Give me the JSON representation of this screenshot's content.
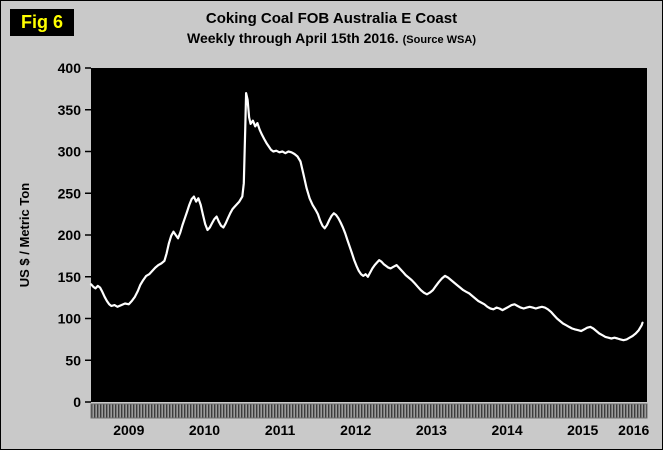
{
  "figure_label": "Fig 6",
  "title": {
    "line1": "Coking Coal FOB Australia E Coast",
    "line2_main": "Weekly through April 15th 2016.",
    "line2_source": "(Source WSA)"
  },
  "colors": {
    "page_bg": "#c9c9c9",
    "plot_bg": "#000000",
    "line": "#ffffff",
    "fig_label_bg": "#000000",
    "fig_label_fg": "#ffff00",
    "band_bg": "#9c9c9c",
    "band_rib": "#3c3c3c",
    "text": "#000000"
  },
  "chart_data": {
    "type": "line",
    "title": "Coking Coal FOB Australia E Coast — Weekly through April 15th 2016 (Source WSA)",
    "xlabel": "",
    "ylabel": "US $ / Metric Ton",
    "ylim": [
      0,
      400
    ],
    "ytick_step": 50,
    "yticks": [
      400,
      350,
      300,
      250,
      200,
      150,
      100,
      50,
      0
    ],
    "x_year_labels": [
      "2009",
      "2010",
      "2011",
      "2012",
      "2013",
      "2014",
      "2015",
      "2016"
    ],
    "xlim": [
      2009.0,
      2016.35
    ],
    "grid": false,
    "legend": "none",
    "series": [
      {
        "name": "Coking Coal FOB Australia E Coast (US$ / metric ton)",
        "points": [
          [
            2009.0,
            141
          ],
          [
            2009.03,
            138
          ],
          [
            2009.06,
            136
          ],
          [
            2009.09,
            139
          ],
          [
            2009.12,
            137
          ],
          [
            2009.15,
            132
          ],
          [
            2009.18,
            126
          ],
          [
            2009.21,
            121
          ],
          [
            2009.24,
            117
          ],
          [
            2009.27,
            115
          ],
          [
            2009.31,
            116
          ],
          [
            2009.35,
            114
          ],
          [
            2009.4,
            116
          ],
          [
            2009.45,
            118
          ],
          [
            2009.5,
            117
          ],
          [
            2009.54,
            121
          ],
          [
            2009.58,
            126
          ],
          [
            2009.62,
            133
          ],
          [
            2009.65,
            140
          ],
          [
            2009.69,
            146
          ],
          [
            2009.73,
            151
          ],
          [
            2009.77,
            153
          ],
          [
            2009.81,
            157
          ],
          [
            2009.85,
            161
          ],
          [
            2009.89,
            164
          ],
          [
            2009.93,
            166
          ],
          [
            2009.97,
            169
          ],
          [
            2010.0,
            178
          ],
          [
            2010.03,
            190
          ],
          [
            2010.06,
            199
          ],
          [
            2010.09,
            204
          ],
          [
            2010.12,
            200
          ],
          [
            2010.15,
            196
          ],
          [
            2010.18,
            203
          ],
          [
            2010.21,
            212
          ],
          [
            2010.24,
            220
          ],
          [
            2010.27,
            228
          ],
          [
            2010.3,
            236
          ],
          [
            2010.33,
            243
          ],
          [
            2010.36,
            246
          ],
          [
            2010.39,
            240
          ],
          [
            2010.42,
            244
          ],
          [
            2010.45,
            236
          ],
          [
            2010.48,
            224
          ],
          [
            2010.51,
            213
          ],
          [
            2010.54,
            206
          ],
          [
            2010.57,
            209
          ],
          [
            2010.6,
            214
          ],
          [
            2010.63,
            219
          ],
          [
            2010.66,
            222
          ],
          [
            2010.69,
            216
          ],
          [
            2010.72,
            211
          ],
          [
            2010.75,
            209
          ],
          [
            2010.78,
            214
          ],
          [
            2010.81,
            220
          ],
          [
            2010.84,
            226
          ],
          [
            2010.87,
            231
          ],
          [
            2010.9,
            234
          ],
          [
            2010.93,
            237
          ],
          [
            2010.96,
            240
          ],
          [
            2011.0,
            246
          ],
          [
            2011.02,
            262
          ],
          [
            2011.04,
            330
          ],
          [
            2011.05,
            370
          ],
          [
            2011.07,
            362
          ],
          [
            2011.09,
            341
          ],
          [
            2011.11,
            333
          ],
          [
            2011.14,
            337
          ],
          [
            2011.17,
            330
          ],
          [
            2011.2,
            334
          ],
          [
            2011.23,
            326
          ],
          [
            2011.26,
            320
          ],
          [
            2011.29,
            315
          ],
          [
            2011.32,
            310
          ],
          [
            2011.35,
            306
          ],
          [
            2011.38,
            302
          ],
          [
            2011.41,
            300
          ],
          [
            2011.45,
            301
          ],
          [
            2011.49,
            299
          ],
          [
            2011.53,
            300
          ],
          [
            2011.57,
            298
          ],
          [
            2011.61,
            300
          ],
          [
            2011.65,
            299
          ],
          [
            2011.69,
            297
          ],
          [
            2011.73,
            294
          ],
          [
            2011.77,
            288
          ],
          [
            2011.81,
            272
          ],
          [
            2011.85,
            256
          ],
          [
            2011.89,
            244
          ],
          [
            2011.93,
            236
          ],
          [
            2011.97,
            230
          ],
          [
            2012.0,
            225
          ],
          [
            2012.03,
            217
          ],
          [
            2012.06,
            211
          ],
          [
            2012.09,
            208
          ],
          [
            2012.12,
            212
          ],
          [
            2012.15,
            218
          ],
          [
            2012.18,
            223
          ],
          [
            2012.21,
            226
          ],
          [
            2012.24,
            224
          ],
          [
            2012.27,
            220
          ],
          [
            2012.3,
            215
          ],
          [
            2012.33,
            209
          ],
          [
            2012.36,
            202
          ],
          [
            2012.39,
            194
          ],
          [
            2012.42,
            186
          ],
          [
            2012.45,
            178
          ],
          [
            2012.48,
            170
          ],
          [
            2012.51,
            163
          ],
          [
            2012.54,
            157
          ],
          [
            2012.57,
            153
          ],
          [
            2012.6,
            151
          ],
          [
            2012.63,
            153
          ],
          [
            2012.66,
            150
          ],
          [
            2012.69,
            155
          ],
          [
            2012.72,
            160
          ],
          [
            2012.75,
            164
          ],
          [
            2012.78,
            167
          ],
          [
            2012.81,
            170
          ],
          [
            2012.84,
            168
          ],
          [
            2012.87,
            165
          ],
          [
            2012.9,
            163
          ],
          [
            2012.93,
            161
          ],
          [
            2012.96,
            160
          ],
          [
            2013.0,
            162
          ],
          [
            2013.04,
            164
          ],
          [
            2013.08,
            160
          ],
          [
            2013.12,
            156
          ],
          [
            2013.16,
            152
          ],
          [
            2013.2,
            149
          ],
          [
            2013.24,
            146
          ],
          [
            2013.28,
            142
          ],
          [
            2013.32,
            138
          ],
          [
            2013.36,
            134
          ],
          [
            2013.4,
            131
          ],
          [
            2013.44,
            129
          ],
          [
            2013.48,
            131
          ],
          [
            2013.52,
            134
          ],
          [
            2013.56,
            139
          ],
          [
            2013.6,
            144
          ],
          [
            2013.64,
            148
          ],
          [
            2013.68,
            151
          ],
          [
            2013.72,
            149
          ],
          [
            2013.76,
            146
          ],
          [
            2013.8,
            143
          ],
          [
            2013.84,
            140
          ],
          [
            2013.88,
            137
          ],
          [
            2013.92,
            134
          ],
          [
            2013.96,
            132
          ],
          [
            2014.0,
            130
          ],
          [
            2014.04,
            127
          ],
          [
            2014.08,
            124
          ],
          [
            2014.12,
            121
          ],
          [
            2014.16,
            119
          ],
          [
            2014.2,
            117
          ],
          [
            2014.24,
            114
          ],
          [
            2014.28,
            112
          ],
          [
            2014.32,
            111
          ],
          [
            2014.36,
            113
          ],
          [
            2014.4,
            112
          ],
          [
            2014.44,
            110
          ],
          [
            2014.48,
            112
          ],
          [
            2014.52,
            114
          ],
          [
            2014.56,
            116
          ],
          [
            2014.6,
            117
          ],
          [
            2014.64,
            115
          ],
          [
            2014.68,
            113
          ],
          [
            2014.72,
            112
          ],
          [
            2014.76,
            113
          ],
          [
            2014.8,
            114
          ],
          [
            2014.84,
            113
          ],
          [
            2014.88,
            112
          ],
          [
            2014.92,
            113
          ],
          [
            2014.96,
            114
          ],
          [
            2015.0,
            113
          ],
          [
            2015.04,
            111
          ],
          [
            2015.08,
            108
          ],
          [
            2015.12,
            104
          ],
          [
            2015.16,
            100
          ],
          [
            2015.2,
            97
          ],
          [
            2015.24,
            94
          ],
          [
            2015.28,
            92
          ],
          [
            2015.32,
            90
          ],
          [
            2015.36,
            88
          ],
          [
            2015.4,
            87
          ],
          [
            2015.44,
            86
          ],
          [
            2015.48,
            85
          ],
          [
            2015.52,
            87
          ],
          [
            2015.56,
            89
          ],
          [
            2015.6,
            90
          ],
          [
            2015.64,
            88
          ],
          [
            2015.68,
            85
          ],
          [
            2015.72,
            82
          ],
          [
            2015.76,
            80
          ],
          [
            2015.8,
            78
          ],
          [
            2015.84,
            77
          ],
          [
            2015.88,
            76
          ],
          [
            2015.92,
            77
          ],
          [
            2015.96,
            76
          ],
          [
            2016.0,
            75
          ],
          [
            2016.04,
            74
          ],
          [
            2016.08,
            75
          ],
          [
            2016.12,
            77
          ],
          [
            2016.16,
            79
          ],
          [
            2016.2,
            82
          ],
          [
            2016.24,
            86
          ],
          [
            2016.28,
            92
          ],
          [
            2016.29,
            95
          ]
        ]
      }
    ]
  }
}
